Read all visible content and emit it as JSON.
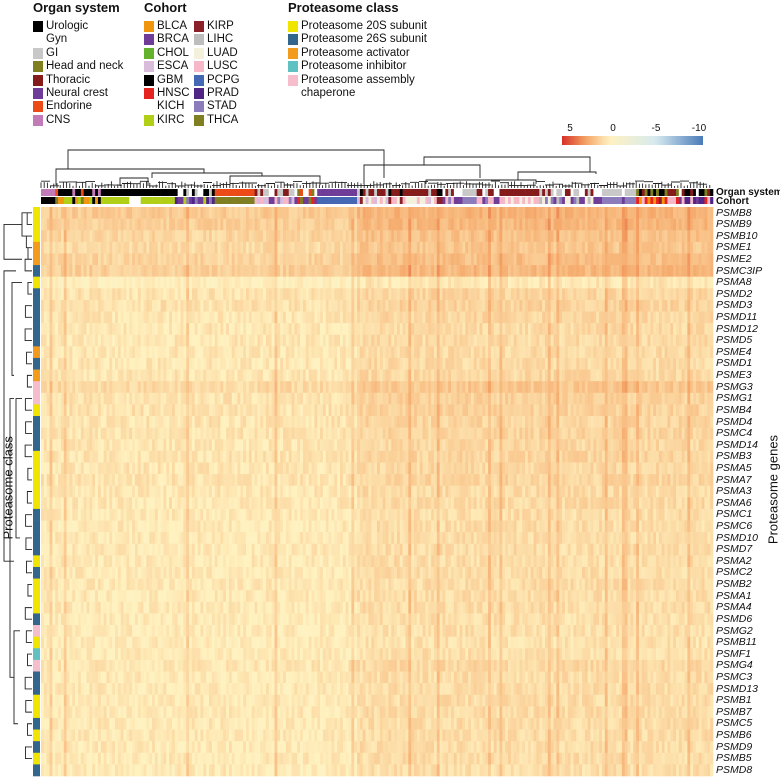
{
  "legends": {
    "organ_system": {
      "title": "Organ system",
      "items": [
        {
          "label": "Urologic",
          "color": "#000000"
        },
        {
          "label": "Gyn",
          "color": "#ffffff"
        },
        {
          "label": "GI",
          "color": "#c8c8c8"
        },
        {
          "label": "Head and neck",
          "color": "#7f7f1f"
        },
        {
          "label": "Thoracic",
          "color": "#841c1c"
        },
        {
          "label": "Neural crest",
          "color": "#6f3d97"
        },
        {
          "label": "Endorine",
          "color": "#ec4a16"
        },
        {
          "label": "CNS",
          "color": "#c27bb8"
        }
      ]
    },
    "cohort": {
      "title": "Cohort",
      "items": [
        {
          "label": "BLCA",
          "color": "#f0960e"
        },
        {
          "label": "BRCA",
          "color": "#6f3d97"
        },
        {
          "label": "CHOL",
          "color": "#62b22e"
        },
        {
          "label": "ESCA",
          "color": "#d9bcdc"
        },
        {
          "label": "GBM",
          "color": "#000000"
        },
        {
          "label": "HNSC",
          "color": "#e52420"
        },
        {
          "label": "KICH",
          "color": "#ffffff"
        },
        {
          "label": "KIRC",
          "color": "#b2cf18"
        },
        {
          "label": "KIRP",
          "color": "#8b2128"
        },
        {
          "label": "LIHC",
          "color": "#bdbdbd"
        },
        {
          "label": "LUAD",
          "color": "#f3f0db"
        },
        {
          "label": "LUSC",
          "color": "#f6b7c8"
        },
        {
          "label": "PCPG",
          "color": "#4468b4"
        },
        {
          "label": "PRAD",
          "color": "#502585"
        },
        {
          "label": "STAD",
          "color": "#8d7cbb"
        },
        {
          "label": "THCA",
          "color": "#7f7f22"
        }
      ]
    },
    "proteasome_class": {
      "title": "Proteasome class",
      "items": [
        {
          "label": "Proteasome 20S subunit",
          "color": "#f0e500"
        },
        {
          "label": "Proteasome 26S subunit",
          "color": "#33668c"
        },
        {
          "label": "Proteasome activator",
          "color": "#f39b1d"
        },
        {
          "label": "Proteasome inhibitor",
          "color": "#5fc1c1"
        },
        {
          "label": "Proteasome assembly",
          "label2": "chaperone",
          "color": "#f6bdcc"
        }
      ]
    }
  },
  "chart_data": {
    "type": "heatmap",
    "row_axis_label": "Proteasome class",
    "row_side_label": "Proteasome genes",
    "column_annotation_labels": [
      "Organ system",
      "Cohort"
    ],
    "color_scale": {
      "ticks": [
        5,
        0,
        -5,
        -10
      ],
      "range": [
        5,
        -10
      ],
      "stops": [
        {
          "value": 5,
          "color": "#d73027"
        },
        {
          "value": 2.5,
          "color": "#f4a263"
        },
        {
          "value": 0,
          "color": "#fff2c0"
        },
        {
          "value": -5,
          "color": "#d6eaf0"
        },
        {
          "value": -10,
          "color": "#4a7ab8"
        }
      ]
    },
    "dendrograms": {
      "rows": true,
      "columns": true
    },
    "organ_system_of_cohort": {
      "BLCA": "Urologic",
      "KICH": "Urologic",
      "KIRC": "Urologic",
      "KIRP": "Urologic",
      "PRAD": "Urologic",
      "BRCA": "Gyn",
      "CHOL": "GI",
      "ESCA": "GI",
      "LIHC": "GI",
      "STAD": "GI",
      "HNSC": "Head and neck",
      "LUAD": "Thoracic",
      "LUSC": "Thoracic",
      "PCPG": "Neural crest",
      "THCA": "Endorine",
      "GBM": "CNS"
    },
    "column_segments": [
      {
        "cohorts": [
          "GBM"
        ],
        "n": 5
      },
      {
        "cohorts": [
          "KIRC",
          "KIRP",
          "THCA",
          "GBM",
          "BLCA"
        ],
        "n": 16
      },
      {
        "cohorts": [
          "KIRC"
        ],
        "n": 10
      },
      {
        "cohorts": [
          "KICH"
        ],
        "n": 4
      },
      {
        "cohorts": [
          "KIRC"
        ],
        "n": 12
      },
      {
        "cohorts": [
          "BRCA",
          "PRAD",
          "STAD",
          "KIRC"
        ],
        "n": 14
      },
      {
        "cohorts": [
          "THCA"
        ],
        "n": 14
      },
      {
        "cohorts": [
          "HNSC",
          "BRCA",
          "LUSC",
          "STAD",
          "ESCA"
        ],
        "n": 16
      },
      {
        "cohorts": [
          "BRCA",
          "THCA",
          "HNSC"
        ],
        "n": 6
      },
      {
        "cohorts": [
          "PCPG"
        ],
        "n": 14
      },
      {
        "cohorts": [
          "LUAD",
          "LUSC",
          "KIRP",
          "ESCA"
        ],
        "n": 30
      },
      {
        "cohorts": [
          "BRCA",
          "STAD",
          "LUSC"
        ],
        "n": 20
      },
      {
        "cohorts": [
          "LUSC",
          "LUAD"
        ],
        "n": 14
      },
      {
        "cohorts": [
          "BRCA",
          "LIHC",
          "STAD",
          "LUAD"
        ],
        "n": 20
      },
      {
        "cohorts": [
          "BRCA",
          "STAD"
        ],
        "n": 14
      },
      {
        "cohorts": [
          "HNSC",
          "KIRP",
          "BLCA",
          "LUSC"
        ],
        "n": 14
      },
      {
        "cohorts": [
          "PRAD",
          "BRCA",
          "LUSC",
          "HNSC"
        ],
        "n": 13
      }
    ],
    "column_cluster_shift": [
      {
        "from_segment": 0,
        "to_segment": 9,
        "shift": 0
      },
      {
        "from_segment": 10,
        "to_segment": 16,
        "shift": 0.7
      }
    ],
    "rows": [
      {
        "gene": "PSMB8",
        "class": "Proteasome 20S subunit",
        "approx_value": 2.2
      },
      {
        "gene": "PSMB9",
        "class": "Proteasome 20S subunit",
        "approx_value": 2.0
      },
      {
        "gene": "PSMB10",
        "class": "Proteasome 20S subunit",
        "approx_value": 1.6
      },
      {
        "gene": "PSME1",
        "class": "Proteasome activator",
        "approx_value": 1.4
      },
      {
        "gene": "PSME2",
        "class": "Proteasome activator",
        "approx_value": 1.7
      },
      {
        "gene": "PSMC3IP",
        "class": "Proteasome 26S subunit",
        "approx_value": 2.0
      },
      {
        "gene": "PSMA8",
        "class": "Proteasome 20S subunit",
        "approx_value": 0.1
      },
      {
        "gene": "PSMD2",
        "class": "Proteasome 26S subunit",
        "approx_value": 0.8
      },
      {
        "gene": "PSMD3",
        "class": "Proteasome 26S subunit",
        "approx_value": 0.9
      },
      {
        "gene": "PSMD11",
        "class": "Proteasome 26S subunit",
        "approx_value": 0.7
      },
      {
        "gene": "PSMD12",
        "class": "Proteasome 26S subunit",
        "approx_value": 0.6
      },
      {
        "gene": "PSMD5",
        "class": "Proteasome 26S subunit",
        "approx_value": 0.6
      },
      {
        "gene": "PSME4",
        "class": "Proteasome activator",
        "approx_value": 0.6
      },
      {
        "gene": "PSMD1",
        "class": "Proteasome 26S subunit",
        "approx_value": 0.6
      },
      {
        "gene": "PSME3",
        "class": "Proteasome activator",
        "approx_value": 0.7
      },
      {
        "gene": "PSMG3",
        "class": "Proteasome assembly chaperone",
        "approx_value": 1.4
      },
      {
        "gene": "PSMG1",
        "class": "Proteasome assembly chaperone",
        "approx_value": 0.9
      },
      {
        "gene": "PSMB4",
        "class": "Proteasome 20S subunit",
        "approx_value": 0.9
      },
      {
        "gene": "PSMD4",
        "class": "Proteasome 26S subunit",
        "approx_value": 0.8
      },
      {
        "gene": "PSMC4",
        "class": "Proteasome 26S subunit",
        "approx_value": 0.8
      },
      {
        "gene": "PSMD14",
        "class": "Proteasome 26S subunit",
        "approx_value": 0.7
      },
      {
        "gene": "PSMB3",
        "class": "Proteasome 20S subunit",
        "approx_value": 0.8
      },
      {
        "gene": "PSMA5",
        "class": "Proteasome 20S subunit",
        "approx_value": 0.7
      },
      {
        "gene": "PSMA7",
        "class": "Proteasome 20S subunit",
        "approx_value": 0.8
      },
      {
        "gene": "PSMA3",
        "class": "Proteasome 20S subunit",
        "approx_value": 0.6
      },
      {
        "gene": "PSMA6",
        "class": "Proteasome 20S subunit",
        "approx_value": 0.6
      },
      {
        "gene": "PSMC1",
        "class": "Proteasome 26S subunit",
        "approx_value": 0.5
      },
      {
        "gene": "PSMC6",
        "class": "Proteasome 26S subunit",
        "approx_value": 0.5
      },
      {
        "gene": "PSMD10",
        "class": "Proteasome 26S subunit",
        "approx_value": 0.5
      },
      {
        "gene": "PSMD7",
        "class": "Proteasome 26S subunit",
        "approx_value": 0.5
      },
      {
        "gene": "PSMA2",
        "class": "Proteasome 20S subunit",
        "approx_value": 0.5
      },
      {
        "gene": "PSMC2",
        "class": "Proteasome 26S subunit",
        "approx_value": 0.5
      },
      {
        "gene": "PSMB2",
        "class": "Proteasome 20S subunit",
        "approx_value": 0.5
      },
      {
        "gene": "PSMA1",
        "class": "Proteasome 20S subunit",
        "approx_value": 0.5
      },
      {
        "gene": "PSMA4",
        "class": "Proteasome 20S subunit",
        "approx_value": 0.5
      },
      {
        "gene": "PSMD6",
        "class": "Proteasome 26S subunit",
        "approx_value": 0.4
      },
      {
        "gene": "PSMG2",
        "class": "Proteasome assembly chaperone",
        "approx_value": 0.4
      },
      {
        "gene": "PSMB11",
        "class": "Proteasome 20S subunit",
        "approx_value": 0.3
      },
      {
        "gene": "PSMF1",
        "class": "Proteasome inhibitor",
        "approx_value": 0.4
      },
      {
        "gene": "PSMG4",
        "class": "Proteasome assembly chaperone",
        "approx_value": 0.7
      },
      {
        "gene": "PSMC3",
        "class": "Proteasome 26S subunit",
        "approx_value": 0.5
      },
      {
        "gene": "PSMD13",
        "class": "Proteasome 26S subunit",
        "approx_value": 0.5
      },
      {
        "gene": "PSMB1",
        "class": "Proteasome 20S subunit",
        "approx_value": 0.5
      },
      {
        "gene": "PSMB7",
        "class": "Proteasome 20S subunit",
        "approx_value": 0.5
      },
      {
        "gene": "PSMC5",
        "class": "Proteasome 26S subunit",
        "approx_value": 0.5
      },
      {
        "gene": "PSMB6",
        "class": "Proteasome 20S subunit",
        "approx_value": 0.5
      },
      {
        "gene": "PSMD9",
        "class": "Proteasome 26S subunit",
        "approx_value": 0.5
      },
      {
        "gene": "PSMB5",
        "class": "Proteasome 20S subunit",
        "approx_value": 0.5
      },
      {
        "gene": "PSMD8",
        "class": "Proteasome 26S subunit",
        "approx_value": 0.4
      }
    ]
  }
}
